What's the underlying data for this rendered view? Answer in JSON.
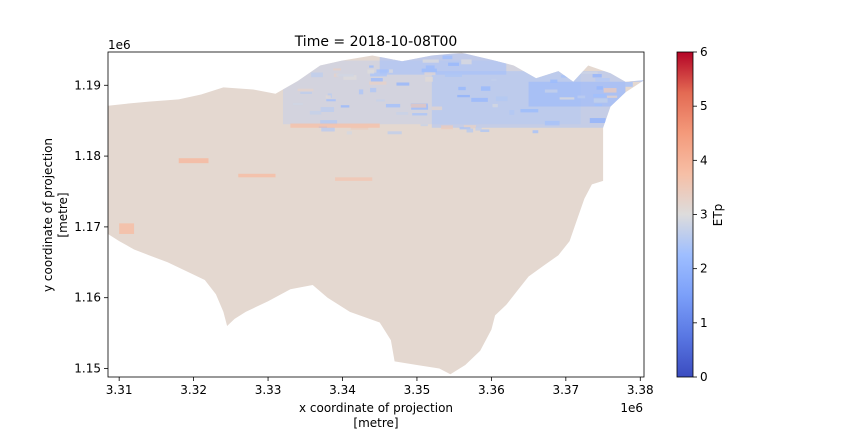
{
  "chart_data": {
    "type": "heatmap",
    "title": "Time = 2018-10-08T00",
    "xlabel_line1": "x coordinate of projection",
    "xlabel_line2": "[metre]",
    "ylabel_line1": "y coordinate of projection",
    "ylabel_line2": "[metre]",
    "x_offset_label": "1e6",
    "y_offset_label": "1e6",
    "xlim": [
      3.3085,
      3.3805
    ],
    "ylim": [
      1.1488,
      1.1947
    ],
    "xticks": [
      3.31,
      3.32,
      3.33,
      3.34,
      3.35,
      3.36,
      3.37,
      3.38
    ],
    "xtick_labels": [
      "3.31",
      "3.32",
      "3.33",
      "3.34",
      "3.35",
      "3.36",
      "3.37",
      "3.38"
    ],
    "yticks": [
      1.15,
      1.16,
      1.17,
      1.18,
      1.19
    ],
    "ytick_labels": [
      "1.15",
      "1.16",
      "1.17",
      "1.18",
      "1.19"
    ],
    "colorbar": {
      "label": "ETp",
      "colormap": "coolwarm",
      "vmin": 0,
      "vmax": 6,
      "ticks": [
        0,
        1,
        2,
        3,
        4,
        5,
        6
      ],
      "tick_labels": [
        "0",
        "1",
        "2",
        "3",
        "4",
        "5",
        "6"
      ]
    },
    "dominant_value": 3.3,
    "dominant_color": "#e4d8d0",
    "high_value_color": "#efc0a9",
    "low_value_color": "#c6d6ef",
    "lowest_value_color": "#a9c2f2",
    "region_outline": [
      [
        3.3085,
        1.1871
      ],
      [
        3.311,
        1.1874
      ],
      [
        3.314,
        1.1877
      ],
      [
        3.318,
        1.188
      ],
      [
        3.321,
        1.1887
      ],
      [
        3.324,
        1.1897
      ],
      [
        3.328,
        1.1894
      ],
      [
        3.331,
        1.1888
      ],
      [
        3.334,
        1.1906
      ],
      [
        3.337,
        1.1928
      ],
      [
        3.34,
        1.1935
      ],
      [
        3.344,
        1.1942
      ],
      [
        3.348,
        1.1934
      ],
      [
        3.352,
        1.1942
      ],
      [
        3.356,
        1.1946
      ],
      [
        3.36,
        1.1936
      ],
      [
        3.363,
        1.1928
      ],
      [
        3.366,
        1.191
      ],
      [
        3.369,
        1.192
      ],
      [
        3.371,
        1.1905
      ],
      [
        3.373,
        1.1928
      ],
      [
        3.376,
        1.1917
      ],
      [
        3.378,
        1.1905
      ],
      [
        3.3805,
        1.1907
      ],
      [
        3.378,
        1.189
      ],
      [
        3.376,
        1.187
      ],
      [
        3.375,
        1.184
      ],
      [
        3.375,
        1.18
      ],
      [
        3.375,
        1.1765
      ],
      [
        3.3735,
        1.176
      ],
      [
        3.3725,
        1.174
      ],
      [
        3.3715,
        1.171
      ],
      [
        3.3705,
        1.168
      ],
      [
        3.369,
        1.166
      ],
      [
        3.367,
        1.1645
      ],
      [
        3.365,
        1.163
      ],
      [
        3.3635,
        1.161
      ],
      [
        3.362,
        1.159
      ],
      [
        3.3605,
        1.1575
      ],
      [
        3.36,
        1.1555
      ],
      [
        3.3585,
        1.1525
      ],
      [
        3.3565,
        1.1505
      ],
      [
        3.3545,
        1.1492
      ],
      [
        3.353,
        1.15
      ],
      [
        3.35,
        1.1505
      ],
      [
        3.347,
        1.151
      ],
      [
        3.3465,
        1.154
      ],
      [
        3.345,
        1.1565
      ],
      [
        3.341,
        1.158
      ],
      [
        3.338,
        1.16
      ],
      [
        3.336,
        1.1618
      ],
      [
        3.333,
        1.1612
      ],
      [
        3.33,
        1.1595
      ],
      [
        3.327,
        1.158
      ],
      [
        3.3255,
        1.157
      ],
      [
        3.3245,
        1.156
      ],
      [
        3.324,
        1.158
      ],
      [
        3.323,
        1.1605
      ],
      [
        3.3215,
        1.1625
      ],
      [
        3.3195,
        1.1635
      ],
      [
        3.3165,
        1.165
      ],
      [
        3.314,
        1.166
      ],
      [
        3.312,
        1.1668
      ],
      [
        3.31,
        1.168
      ],
      [
        3.3085,
        1.169
      ]
    ],
    "cool_zones": [
      {
        "x": [
          3.332,
          3.372
        ],
        "y": [
          1.1845,
          1.1935
        ],
        "value": 2.7
      },
      {
        "x": [
          3.352,
          3.378
        ],
        "y": [
          1.184,
          1.192
        ],
        "value": 2.4
      },
      {
        "x": [
          3.345,
          3.362
        ],
        "y": [
          1.1915,
          1.1945
        ],
        "value": 2.3
      },
      {
        "x": [
          3.365,
          3.378
        ],
        "y": [
          1.187,
          1.1905
        ],
        "value": 2.1
      }
    ],
    "warm_streaks": [
      {
        "x": [
          3.318,
          3.322
        ],
        "y": [
          1.179,
          1.1797
        ],
        "value": 3.9
      },
      {
        "x": [
          3.326,
          3.331
        ],
        "y": [
          1.177,
          1.1775
        ],
        "value": 3.8
      },
      {
        "x": [
          3.31,
          3.312
        ],
        "y": [
          1.169,
          1.1705
        ],
        "value": 3.8
      },
      {
        "x": [
          3.333,
          3.345
        ],
        "y": [
          1.184,
          1.1846
        ],
        "value": 3.7
      },
      {
        "x": [
          3.339,
          3.344
        ],
        "y": [
          1.1765,
          1.177
        ],
        "value": 3.6
      }
    ]
  }
}
